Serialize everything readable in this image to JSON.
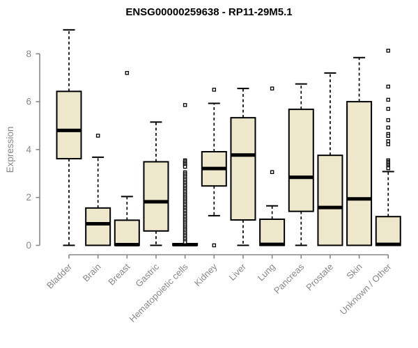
{
  "chart_data": {
    "type": "boxplot",
    "title": "ENSG00000259638 - RP11-29M5.1",
    "ylabel": "Expression",
    "xlabel": "",
    "ylim": [
      0,
      9.2
    ],
    "yticks": [
      0,
      2,
      4,
      6,
      8
    ],
    "grid": false,
    "legend": null,
    "colors": {
      "box_fill": "#EDE7CB",
      "box_border": "#000000",
      "median": "#000000",
      "whisker": "#000000",
      "outlier_stroke": "#000000",
      "outlier_fill": "#ffffff",
      "axis": "#878787",
      "tick_label": "#878787",
      "title": "#000000",
      "background": "#ffffff"
    },
    "categories": [
      "Bladder",
      "Brain",
      "Breast",
      "Gastric",
      "Hematopoietic cells",
      "Kidney",
      "Liver",
      "Lung",
      "Pancreas",
      "Prostate",
      "Skin",
      "Unknown / Other"
    ],
    "boxes": [
      {
        "category": "Bladder",
        "whisker_low": 0,
        "q1": 3.62,
        "median": 4.8,
        "q3": 6.43,
        "whisker_high": 9.0,
        "outliers": []
      },
      {
        "category": "Brain",
        "whisker_low": 0,
        "q1": 0.0,
        "median": 0.9,
        "q3": 1.56,
        "whisker_high": 3.68,
        "outliers": [
          4.58
        ]
      },
      {
        "category": "Breast",
        "whisker_low": 0,
        "q1": 0.0,
        "median": 0.03,
        "q3": 1.05,
        "whisker_high": 2.04,
        "outliers": [
          7.2
        ]
      },
      {
        "category": "Gastric",
        "whisker_low": 0,
        "q1": 0.6,
        "median": 1.82,
        "q3": 3.49,
        "whisker_high": 5.15,
        "outliers": []
      },
      {
        "category": "Hematopoietic cells",
        "whisker_low": 0,
        "q1": 0.0,
        "median": 0.03,
        "q3": 0.07,
        "whisker_high": 0.07,
        "outliers": [
          5.86,
          3.55,
          3.5,
          3.44,
          3.39,
          3.33,
          3.28,
          3.05,
          2.99,
          2.92,
          2.86,
          2.79,
          2.73,
          2.66,
          2.6,
          2.53,
          2.47,
          2.4,
          2.34,
          2.27,
          2.21,
          2.14,
          2.08,
          2.01,
          1.95,
          1.88,
          1.82,
          1.75,
          1.69,
          1.62,
          1.56,
          1.49,
          1.43,
          1.36,
          1.3,
          1.23,
          1.17,
          1.1,
          1.04,
          0.97,
          0.91,
          0.84,
          0.78,
          0.71,
          0.65,
          0.58,
          0.52,
          0.45,
          0.39,
          0.32,
          0.26,
          0.19,
          0.13
        ]
      },
      {
        "category": "Kidney",
        "whisker_low": 1.24,
        "q1": 2.48,
        "median": 3.21,
        "q3": 3.91,
        "whisker_high": 5.93,
        "outliers": [
          6.5,
          0.0
        ]
      },
      {
        "category": "Liver",
        "whisker_low": 0,
        "q1": 1.06,
        "median": 3.77,
        "q3": 5.33,
        "whisker_high": 6.55,
        "outliers": []
      },
      {
        "category": "Lung",
        "whisker_low": 0,
        "q1": 0.0,
        "median": 0.04,
        "q3": 1.09,
        "whisker_high": 1.65,
        "outliers": [
          6.55,
          3.06
        ]
      },
      {
        "category": "Pancreas",
        "whisker_low": 0,
        "q1": 1.42,
        "median": 2.84,
        "q3": 5.68,
        "whisker_high": 6.74,
        "outliers": []
      },
      {
        "category": "Prostate",
        "whisker_low": 0,
        "q1": 0.0,
        "median": 1.58,
        "q3": 3.76,
        "whisker_high": 7.2,
        "outliers": []
      },
      {
        "category": "Skin",
        "whisker_low": 0,
        "q1": 0.0,
        "median": 1.94,
        "q3": 6.0,
        "whisker_high": 7.84,
        "outliers": []
      },
      {
        "category": "Unknown / Other",
        "whisker_low": 0,
        "q1": 0.0,
        "median": 0.04,
        "q3": 1.2,
        "whisker_high": 3.08,
        "outliers": [
          8.13,
          6.63,
          6.08,
          5.7,
          5.23,
          4.92,
          4.65,
          4.57,
          4.35,
          4.22,
          3.55,
          3.49,
          3.44,
          3.38,
          3.33,
          3.27,
          3.22
        ]
      }
    ]
  }
}
